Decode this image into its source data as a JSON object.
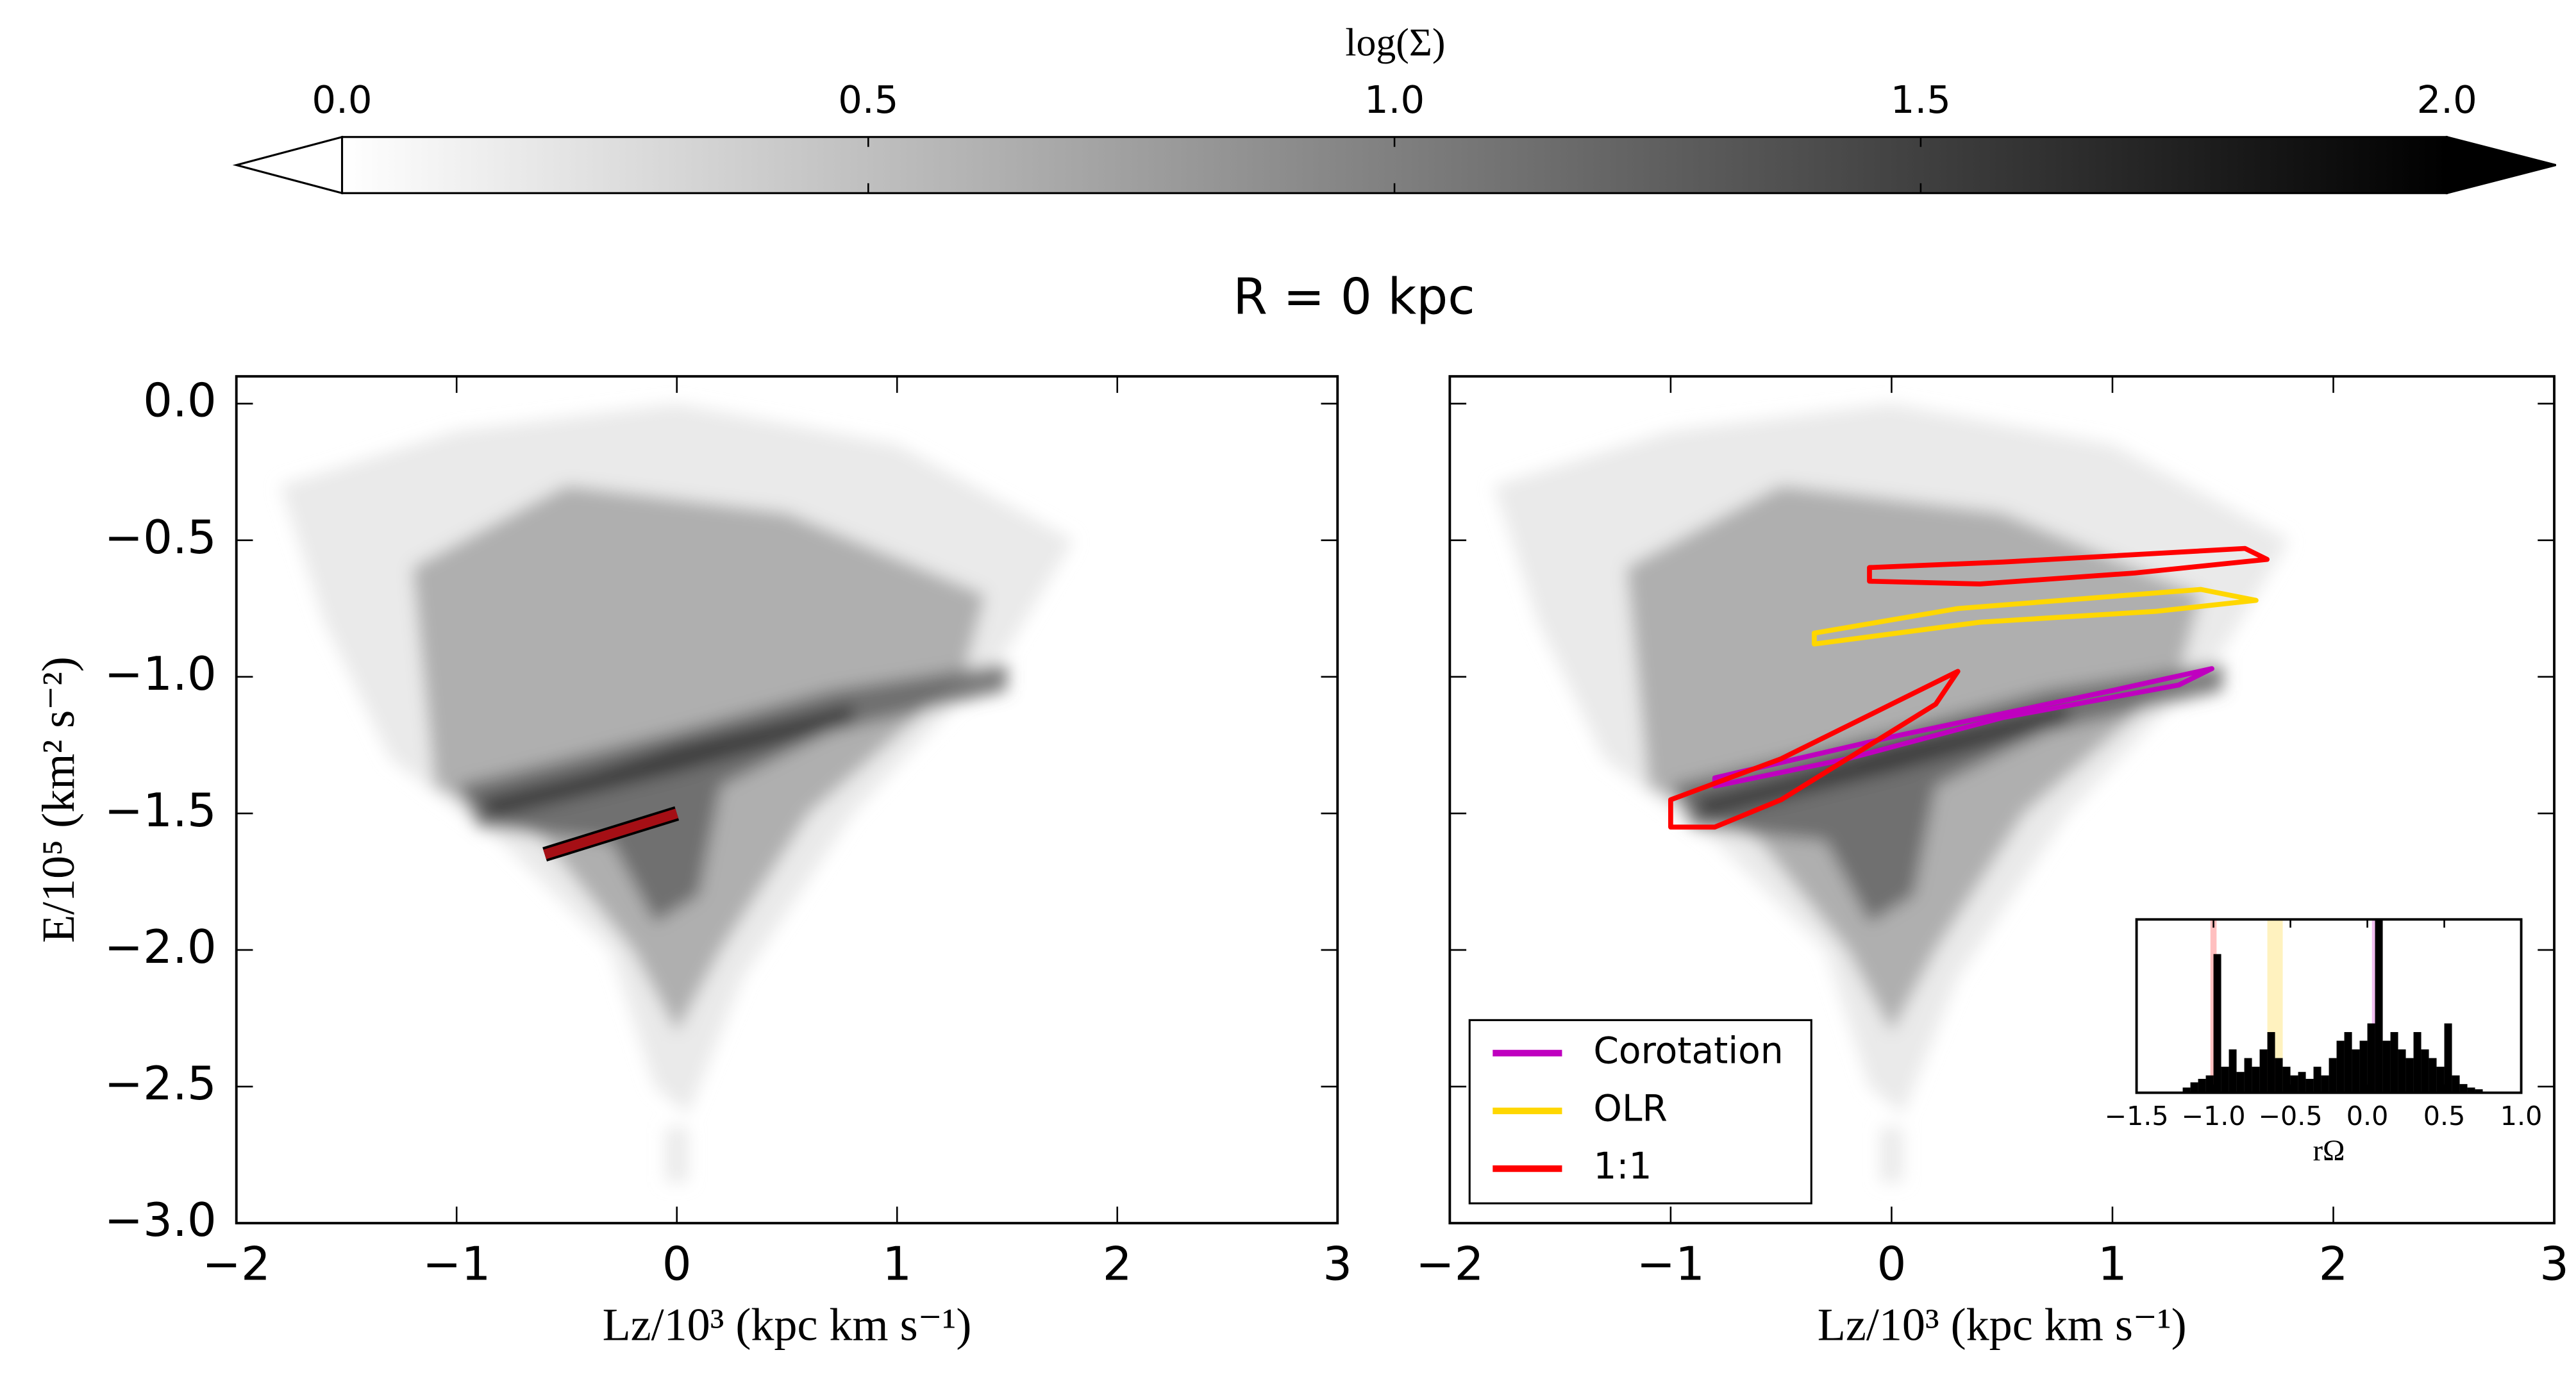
{
  "figure": {
    "title": "R = 0 kpc"
  },
  "colorbar": {
    "label": "log(Σ)",
    "lim": [
      0,
      2
    ],
    "extend": "both",
    "cmap": [
      "#ffffff",
      "#000000"
    ],
    "ticks": [
      {
        "value": 0,
        "label": "0.0"
      },
      {
        "value": 0.5,
        "label": "0.5"
      },
      {
        "value": 1,
        "label": "1.0"
      },
      {
        "value": 1.5,
        "label": "1.5"
      },
      {
        "value": 2,
        "label": "2.0"
      }
    ]
  },
  "chart_data": [
    {
      "type": "density",
      "xlabel": "Lz/10³ (kpc km s⁻¹)",
      "ylabel": "E/10⁵ (km² s⁻²)",
      "xlim": [
        -2,
        3
      ],
      "ylim": [
        -3.0,
        0.1
      ],
      "xticks": [
        {
          "value": -2,
          "label": "−2"
        },
        {
          "value": -1,
          "label": "−1"
        },
        0,
        1,
        2,
        3
      ],
      "yticks": [
        {
          "value": 0,
          "label": "0.0"
        },
        {
          "value": -0.5,
          "label": "−0.5"
        },
        {
          "value": -1,
          "label": "−1.0"
        },
        {
          "value": -1.5,
          "label": "−1.5"
        },
        {
          "value": -2,
          "label": "−2.0"
        },
        {
          "value": -2.5,
          "label": "−2.5"
        },
        {
          "value": -3,
          "label": "−3.0"
        }
      ],
      "regions": [
        {
          "level": 0.2,
          "x": [
            -1.8,
            -1.0,
            0.0,
            1.0,
            1.8,
            1.5,
            0.8,
            0.3,
            0.05,
            -0.1,
            -0.3,
            -0.8,
            -1.3,
            -1.6
          ],
          "y": [
            -0.3,
            -0.1,
            0.0,
            -0.15,
            -0.5,
            -0.9,
            -1.5,
            -2.1,
            -2.6,
            -2.5,
            -2.0,
            -1.6,
            -1.3,
            -0.8
          ]
        },
        {
          "level": 0.2,
          "x": [
            -0.05,
            0.05,
            0.05,
            -0.05
          ],
          "y": [
            -2.65,
            -2.65,
            -2.85,
            -2.85
          ]
        },
        {
          "level": 0.7,
          "x": [
            -1.2,
            -0.5,
            0.5,
            1.4,
            1.3,
            0.6,
            0.2,
            0.0,
            -0.2,
            -0.6,
            -1.1
          ],
          "y": [
            -0.6,
            -0.3,
            -0.4,
            -0.7,
            -1.0,
            -1.5,
            -2.0,
            -2.3,
            -2.0,
            -1.6,
            -1.4
          ]
        },
        {
          "level": 1.2,
          "x": [
            -1.0,
            -0.5,
            0.0,
            0.7,
            1.5,
            1.5,
            0.7,
            0.2,
            0.1,
            -0.1,
            -0.3,
            -0.9
          ],
          "y": [
            -1.4,
            -1.3,
            -1.2,
            -1.05,
            -0.95,
            -1.05,
            -1.2,
            -1.4,
            -1.8,
            -1.9,
            -1.6,
            -1.55
          ]
        },
        {
          "level": 1.6,
          "x": [
            -0.9,
            -0.4,
            0.0,
            0.8,
            0.8,
            0.0,
            -0.5,
            -0.85
          ],
          "y": [
            -1.45,
            -1.35,
            -1.25,
            -1.1,
            -1.17,
            -1.35,
            -1.45,
            -1.52
          ]
        }
      ],
      "annotation_line": {
        "x": [
          -0.6,
          0.0
        ],
        "y": [
          -1.65,
          -1.5
        ],
        "color": "#a50f15"
      }
    },
    {
      "type": "density",
      "xlabel": "Lz/10³ (kpc km s⁻¹)",
      "xlim": [
        -2,
        3
      ],
      "ylim": [
        -3.0,
        0.1
      ],
      "xticks": [
        {
          "value": -2,
          "label": "−2"
        },
        {
          "value": -1,
          "label": "−1"
        },
        0,
        1,
        2,
        3
      ],
      "yticks": [
        0,
        -0.5,
        -1,
        -1.5,
        -2,
        -2.5,
        -3
      ],
      "regions": [
        {
          "level": 0.2,
          "x": [
            -1.8,
            -1.0,
            0.0,
            1.0,
            1.8,
            1.5,
            0.8,
            0.3,
            0.05,
            -0.1,
            -0.3,
            -0.8,
            -1.3,
            -1.6
          ],
          "y": [
            -0.3,
            -0.1,
            0.0,
            -0.15,
            -0.5,
            -0.9,
            -1.5,
            -2.1,
            -2.6,
            -2.5,
            -2.0,
            -1.6,
            -1.3,
            -0.8
          ]
        },
        {
          "level": 0.2,
          "x": [
            -0.05,
            0.05,
            0.05,
            -0.05
          ],
          "y": [
            -2.65,
            -2.65,
            -2.85,
            -2.85
          ]
        },
        {
          "level": 0.7,
          "x": [
            -1.2,
            -0.5,
            0.5,
            1.4,
            1.3,
            0.6,
            0.2,
            0.0,
            -0.2,
            -0.6,
            -1.1
          ],
          "y": [
            -0.6,
            -0.3,
            -0.4,
            -0.7,
            -1.0,
            -1.5,
            -2.0,
            -2.3,
            -2.0,
            -1.6,
            -1.4
          ]
        },
        {
          "level": 1.2,
          "x": [
            -1.0,
            -0.5,
            0.0,
            0.7,
            1.5,
            1.5,
            0.7,
            0.2,
            0.1,
            -0.1,
            -0.3,
            -0.9
          ],
          "y": [
            -1.4,
            -1.3,
            -1.2,
            -1.05,
            -0.95,
            -1.05,
            -1.2,
            -1.4,
            -1.8,
            -1.9,
            -1.6,
            -1.55
          ]
        },
        {
          "level": 1.6,
          "x": [
            -0.9,
            -0.4,
            0.0,
            0.8,
            0.8,
            0.0,
            -0.5,
            -0.85
          ],
          "y": [
            -1.45,
            -1.35,
            -1.25,
            -1.1,
            -1.17,
            -1.35,
            -1.45,
            -1.52
          ]
        }
      ],
      "series": [
        {
          "name": "Corotation",
          "color": "#bf00bf",
          "contours": [
            {
              "x": [
                -0.8,
                0.0,
                1.0,
                1.45,
                1.3,
                0.5,
                -0.2,
                -0.8
              ],
              "y": [
                -1.37,
                -1.22,
                -1.05,
                -0.97,
                -1.03,
                -1.15,
                -1.3,
                -1.4
              ]
            }
          ]
        },
        {
          "name": "OLR",
          "color": "#ffd700",
          "contours": [
            {
              "x": [
                -0.35,
                0.3,
                1.4,
                1.65,
                1.2,
                0.4,
                -0.35
              ],
              "y": [
                -0.84,
                -0.75,
                -0.68,
                -0.72,
                -0.76,
                -0.8,
                -0.88
              ]
            }
          ]
        },
        {
          "name": "1:1",
          "color": "#ff0000",
          "contours": [
            {
              "x": [
                -0.1,
                0.5,
                1.6,
                1.7,
                1.1,
                0.4,
                -0.1
              ],
              "y": [
                -0.6,
                -0.58,
                -0.53,
                -0.57,
                -0.62,
                -0.66,
                -0.65
              ]
            },
            {
              "x": [
                -1.0,
                -0.5,
                0.0,
                0.3,
                0.2,
                -0.2,
                -0.5,
                -0.8,
                -1.0
              ],
              "y": [
                -1.45,
                -1.3,
                -1.1,
                -0.98,
                -1.1,
                -1.3,
                -1.45,
                -1.55,
                -1.55
              ]
            }
          ]
        }
      ],
      "legend": "lower left"
    },
    {
      "type": "histogram",
      "xlabel": "rΩ",
      "xlim": [
        -1.5,
        1.0
      ],
      "ylim": [
        0,
        100
      ],
      "xticks": [
        {
          "value": -1.5,
          "label": "−1.5"
        },
        {
          "value": -1,
          "label": "−1.0"
        },
        {
          "value": -0.5,
          "label": "−0.5"
        },
        {
          "value": 0,
          "label": "0.0"
        },
        {
          "value": 0.5,
          "label": "0.5"
        },
        {
          "value": 1,
          "label": "1.0"
        }
      ],
      "bins": [
        -1.5,
        -1.45,
        -1.4,
        -1.35,
        -1.3,
        -1.25,
        -1.2,
        -1.15,
        -1.1,
        -1.05,
        -1.0,
        -0.95,
        -0.9,
        -0.85,
        -0.8,
        -0.75,
        -0.7,
        -0.65,
        -0.6,
        -0.55,
        -0.5,
        -0.45,
        -0.4,
        -0.35,
        -0.3,
        -0.25,
        -0.2,
        -0.15,
        -0.1,
        -0.05,
        0.0,
        0.05,
        0.1,
        0.15,
        0.2,
        0.25,
        0.3,
        0.35,
        0.4,
        0.45,
        0.5,
        0.55,
        0.6,
        0.65,
        0.7,
        0.75,
        0.8,
        0.85,
        0.9,
        0.95,
        1.0
      ],
      "values": [
        0,
        0,
        0,
        0,
        0,
        0,
        3,
        6,
        8,
        10,
        80,
        15,
        25,
        12,
        20,
        15,
        25,
        35,
        20,
        15,
        10,
        12,
        8,
        15,
        10,
        20,
        30,
        35,
        25,
        30,
        40,
        100,
        30,
        35,
        25,
        20,
        35,
        25,
        20,
        15,
        40,
        10,
        5,
        3,
        2,
        0,
        0,
        0,
        0,
        0
      ],
      "color": "#000000",
      "spans": [
        {
          "x": [
            -1.02,
            -0.98
          ],
          "color": "#ff8080"
        },
        {
          "x": [
            -0.65,
            -0.55
          ],
          "color": "#ffe680"
        },
        {
          "x": [
            0.03,
            0.1
          ],
          "color": "#e680e6"
        }
      ]
    }
  ]
}
